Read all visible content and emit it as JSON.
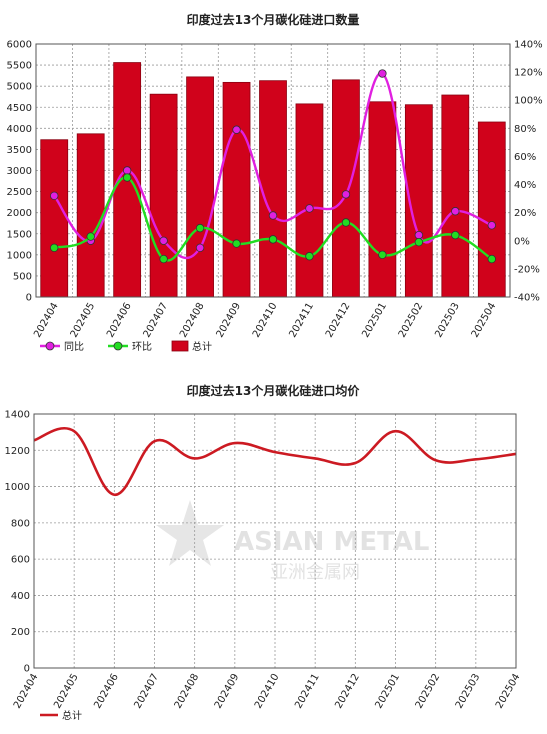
{
  "colors": {
    "bar": "#d0021b",
    "bar_border": "#8a0010",
    "yoy": "#e020e0",
    "mom": "#22dd22",
    "price_line": "#cc1a22"
  },
  "chart_data": [
    {
      "type": "bar",
      "title": "印度过去13个月碳化硅进口数量",
      "categories": [
        "202404",
        "202405",
        "202406",
        "202407",
        "202408",
        "202409",
        "202410",
        "202411",
        "202412",
        "202501",
        "202502",
        "202503",
        "202504"
      ],
      "series": [
        {
          "name": "总计",
          "kind": "bar",
          "axis": "left",
          "values": [
            3730,
            3870,
            5560,
            4810,
            5220,
            5090,
            5130,
            4580,
            5150,
            4630,
            4560,
            4790,
            4150
          ]
        },
        {
          "name": "同比",
          "kind": "line",
          "axis": "right",
          "values": [
            32,
            0,
            50,
            0,
            -5,
            79,
            18,
            23,
            33,
            119,
            4,
            21,
            11
          ]
        },
        {
          "name": "环比",
          "kind": "line",
          "axis": "right",
          "values": [
            -5,
            3,
            45,
            -13,
            9,
            -2,
            1,
            -11,
            13,
            -10,
            -1,
            4,
            -13
          ]
        }
      ],
      "ylim_left": [
        0,
        6000
      ],
      "yticks_left": [
        "0",
        "500",
        "1000",
        "1500",
        "2000",
        "2500",
        "3000",
        "3500",
        "4000",
        "4500",
        "5000",
        "5500",
        "6000"
      ],
      "ylim_right": [
        -40,
        140
      ],
      "yticks_right": [
        "-40%",
        "-20%",
        "0%",
        "20%",
        "40%",
        "60%",
        "80%",
        "100%",
        "120%",
        "140%"
      ],
      "grid": true,
      "legend": "bottom-left",
      "legend_items": [
        "同比",
        "环比",
        "总计"
      ]
    },
    {
      "type": "line",
      "title": "印度过去13个月碳化硅进口均价",
      "categories": [
        "202404",
        "202405",
        "202406",
        "202407",
        "202408",
        "202409",
        "202410",
        "202411",
        "202412",
        "202501",
        "202502",
        "202503",
        "202504"
      ],
      "series": [
        {
          "name": "总计",
          "values": [
            1255,
            1305,
            955,
            1250,
            1155,
            1240,
            1190,
            1155,
            1130,
            1305,
            1145,
            1150,
            1180
          ]
        }
      ],
      "ylim": [
        0,
        1400
      ],
      "yticks": [
        "0",
        "200",
        "400",
        "600",
        "800",
        "1000",
        "1200",
        "1400"
      ],
      "grid": true,
      "legend": "bottom-left",
      "legend_items": [
        "总计"
      ]
    }
  ],
  "watermark": {
    "brand": "ASIAN METAL",
    "brand_cn": "亚洲金属网"
  }
}
